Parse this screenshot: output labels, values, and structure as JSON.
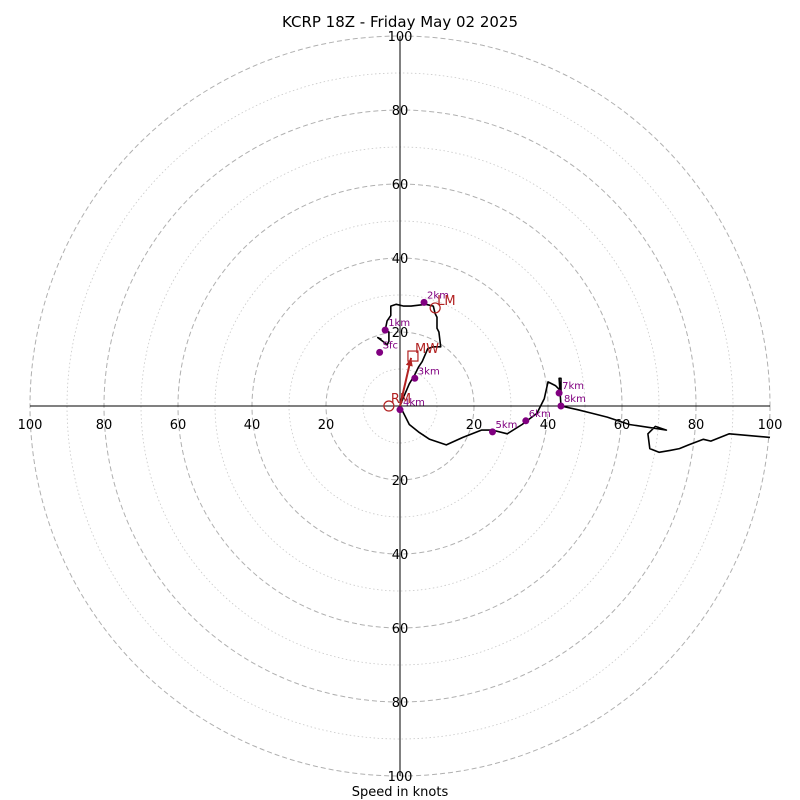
{
  "chart_data": {
    "type": "hodograph",
    "title": "KCRP 18Z - Friday May 02 2025",
    "xlabel": "Speed in knots",
    "range": [
      -100,
      100
    ],
    "ring_step_major": 20,
    "ring_step_minor": 10,
    "tick_labels": [
      "100",
      "80",
      "60",
      "40",
      "20",
      "20",
      "40",
      "60",
      "80",
      "100"
    ],
    "tick_values": [
      -100,
      -80,
      -60,
      -40,
      -20,
      20,
      40,
      60,
      80,
      100
    ],
    "hodograph_trace": [
      [
        -5,
        18
      ],
      [
        -6,
        18.5
      ],
      [
        -4,
        17
      ],
      [
        -3.5,
        16.5
      ],
      [
        -3,
        17.5
      ],
      [
        -3,
        20
      ],
      [
        -4,
        20.5
      ],
      [
        -3.5,
        23
      ],
      [
        -2.5,
        24.5
      ],
      [
        -2.5,
        27
      ],
      [
        -1,
        27.5
      ],
      [
        1,
        27
      ],
      [
        3,
        27
      ],
      [
        7,
        27.5
      ],
      [
        9,
        27
      ],
      [
        9.5,
        25
      ],
      [
        10,
        24
      ],
      [
        10,
        21
      ],
      [
        10.5,
        20
      ],
      [
        11,
        16
      ],
      [
        9,
        16
      ],
      [
        7.5,
        15.5
      ],
      [
        6,
        12
      ],
      [
        5,
        10.5
      ],
      [
        4,
        8.5
      ],
      [
        2.5,
        6
      ],
      [
        1,
        2.5
      ],
      [
        0,
        0
      ],
      [
        1,
        -2
      ],
      [
        2.5,
        -5
      ],
      [
        5,
        -7
      ],
      [
        8,
        -9
      ],
      [
        12.5,
        -10.5
      ],
      [
        17,
        -8.5
      ],
      [
        22,
        -6.5
      ],
      [
        25,
        -6.5
      ],
      [
        29,
        -7.5
      ],
      [
        33,
        -5
      ],
      [
        35,
        -3.5
      ],
      [
        37,
        -2
      ],
      [
        38,
        0
      ],
      [
        39,
        2
      ],
      [
        40,
        6.5
      ],
      [
        42,
        5.5
      ],
      [
        43.5,
        4
      ],
      [
        43.5,
        7.5
      ],
      [
        43,
        7.5
      ],
      [
        43.5,
        0
      ],
      [
        48,
        -1
      ],
      [
        52,
        -2
      ],
      [
        56,
        -3
      ],
      [
        62,
        -5
      ],
      [
        72,
        -6.5
      ],
      [
        69,
        -5.5
      ],
      [
        67,
        -7.5
      ],
      [
        67.5,
        -11.5
      ],
      [
        70,
        -12.5
      ],
      [
        73,
        -12
      ],
      [
        75.5,
        -11.5
      ],
      [
        78,
        -10.5
      ],
      [
        82,
        -9
      ],
      [
        84,
        -9.5
      ],
      [
        89,
        -7.5
      ],
      [
        100,
        -8.5
      ]
    ],
    "height_markers": [
      {
        "label": "Sfc",
        "u": -5.5,
        "v": 14.5
      },
      {
        "label": "1km",
        "u": -4,
        "v": 20.5
      },
      {
        "label": "2km",
        "u": 6.5,
        "v": 28
      },
      {
        "label": "3km",
        "u": 4,
        "v": 7.5
      },
      {
        "label": "4km",
        "u": 0,
        "v": -1
      },
      {
        "label": "5km",
        "u": 25,
        "v": -7
      },
      {
        "label": "6km",
        "u": 34,
        "v": -4
      },
      {
        "label": "7km",
        "u": 43,
        "v": 3.5
      },
      {
        "label": "8km",
        "u": 43.5,
        "v": 0
      }
    ],
    "motion_markers": [
      {
        "label": "LM",
        "u": 9.5,
        "v": 26.5,
        "shape": "circle"
      },
      {
        "label": "MW",
        "u": 3.5,
        "v": 13.5,
        "shape": "square"
      },
      {
        "label": "RM",
        "u": -3,
        "v": 0,
        "shape": "circle"
      }
    ],
    "shear_vector": {
      "from": [
        0,
        0
      ],
      "to": [
        3,
        13
      ]
    },
    "colors": {
      "trace": "#000000",
      "height_marker": "#800080",
      "storm_motion": "#b22222",
      "ring_major": "#b0b0b0",
      "ring_minor": "#c8c8c8"
    }
  }
}
